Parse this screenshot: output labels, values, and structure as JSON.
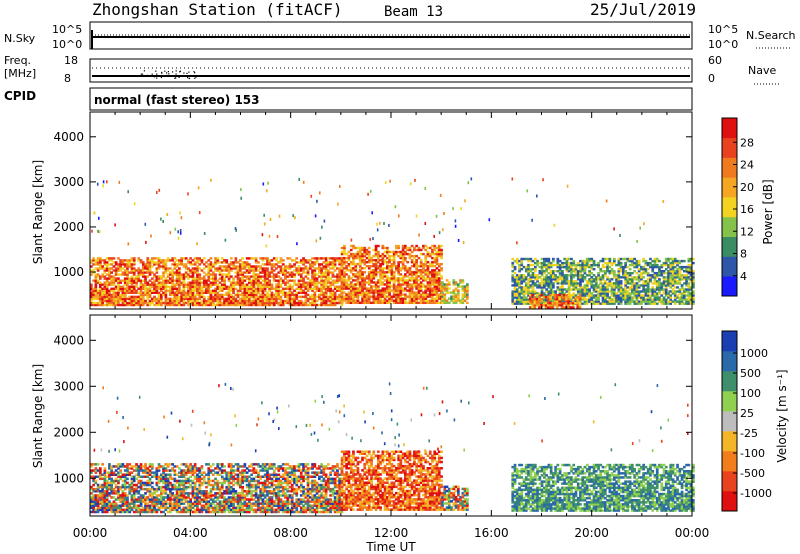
{
  "header": {
    "station": "Zhongshan Station (fitACF)",
    "beam": "Beam 13",
    "date": "25/Jul/2019"
  },
  "top_panels": {
    "nsky_label": "N.Sky",
    "nsky_ticks": [
      "10^5",
      "10^0"
    ],
    "nsearch_label": "N.Search",
    "nsearch_ticks": [
      "10^5",
      "10^0"
    ],
    "freq_label": "Freq.",
    "freq_unit": "[MHz]",
    "freq_ticks": [
      "18",
      "8"
    ],
    "nave_label": "Nave",
    "nave_ticks": [
      "60",
      "0"
    ],
    "cpid_label": "CPID",
    "cpid_value": "normal (fast stereo) 153"
  },
  "colors": {
    "power": [
      "#1a1aff",
      "#2d56a8",
      "#3a8c62",
      "#84c24a",
      "#f2d321",
      "#f5a623",
      "#f07b1e",
      "#e8421e",
      "#e01010"
    ],
    "velocity": [
      "#e01010",
      "#e8421e",
      "#f27d1a",
      "#f5b528",
      "#bdbdbd",
      "#8fd14f",
      "#3f8f6d",
      "#2b6aa8",
      "#1a3fb3"
    ]
  },
  "chart_data": [
    {
      "type": "heatmap",
      "name": "power",
      "xlabel": "Time UT",
      "ylabel": "Slant Range [km]",
      "ylim": [
        180,
        4550
      ],
      "yticks": [
        "4000",
        "3000",
        "2000",
        "1000"
      ],
      "xticks": [
        "00:00",
        "04:00",
        "08:00",
        "12:00",
        "16:00",
        "20:00",
        "00:00"
      ],
      "colorbar_label": "Power [dB]",
      "colorbar_ticks": [
        "28",
        "24",
        "20",
        "16",
        "12",
        "8",
        "4"
      ],
      "regions": [
        {
          "t0": 0.0,
          "t1": 10.0,
          "r0": 250,
          "r1": 1300,
          "kind": "strong"
        },
        {
          "t0": 10.0,
          "t1": 14.0,
          "r0": 300,
          "r1": 1600,
          "kind": "strong"
        },
        {
          "t0": 14.0,
          "t1": 15.0,
          "r0": 300,
          "r1": 800,
          "kind": "medium"
        },
        {
          "t0": 16.8,
          "t1": 24.0,
          "r0": 280,
          "r1": 1300,
          "kind": "weak"
        },
        {
          "t0": 17.5,
          "t1": 19.5,
          "r0": 200,
          "r1": 500,
          "kind": "strong"
        }
      ]
    },
    {
      "type": "heatmap",
      "name": "velocity",
      "xlabel": "Time UT",
      "ylabel": "Slant Range [km]",
      "ylim": [
        180,
        4550
      ],
      "yticks": [
        "4000",
        "3000",
        "2000",
        "1000"
      ],
      "xticks": [
        "00:00",
        "04:00",
        "08:00",
        "12:00",
        "16:00",
        "20:00",
        "00:00"
      ],
      "colorbar_label": "Velocity [m s⁻¹]",
      "colorbar_ticks": [
        "1000",
        "500",
        "100",
        "25",
        "-25",
        "-100",
        "-500",
        "-1000"
      ],
      "regions": [
        {
          "t0": 0.0,
          "t1": 10.0,
          "r0": 250,
          "r1": 1300,
          "kind": "mixed"
        },
        {
          "t0": 10.0,
          "t1": 14.0,
          "r0": 300,
          "r1": 1600,
          "kind": "away"
        },
        {
          "t0": 14.0,
          "t1": 15.0,
          "r0": 300,
          "r1": 800,
          "kind": "mixed"
        },
        {
          "t0": 16.8,
          "t1": 24.0,
          "r0": 280,
          "r1": 1300,
          "kind": "toward"
        }
      ]
    }
  ]
}
